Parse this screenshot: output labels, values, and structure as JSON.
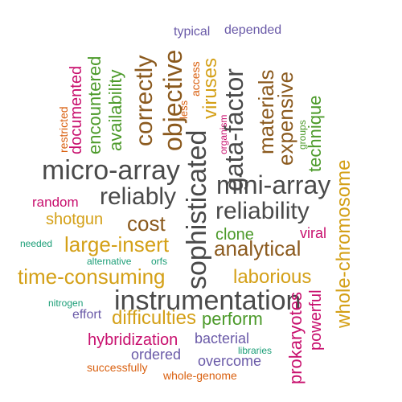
{
  "colors": {
    "gray": "#4a4a4a",
    "brown": "#8b5a1e",
    "gold": "#d4a017",
    "green": "#4c9a2a",
    "magenta": "#c8106e",
    "purple": "#6a5aa8",
    "orange": "#d95f0e",
    "teal": "#1b9e77"
  },
  "words": [
    {
      "text": "typical",
      "color": "#6a5aa8"
    },
    {
      "text": "depended",
      "color": "#6a5aa8"
    },
    {
      "text": "restricted",
      "color": "#d95f0e"
    },
    {
      "text": "documented",
      "color": "#c8106e"
    },
    {
      "text": "encountered",
      "color": "#4c9a2a"
    },
    {
      "text": "availability",
      "color": "#4c9a2a"
    },
    {
      "text": "correctly",
      "color": "#8b5a1e"
    },
    {
      "text": "less",
      "color": "#d95f0e"
    },
    {
      "text": "objective",
      "color": "#8b5a1e"
    },
    {
      "text": "access",
      "color": "#d95f0e"
    },
    {
      "text": "viruses",
      "color": "#d4a017"
    },
    {
      "text": "organism",
      "color": "#c8106e"
    },
    {
      "text": "gata-factor",
      "color": "#4a4a4a"
    },
    {
      "text": "materials",
      "color": "#8b5a1e"
    },
    {
      "text": "expensive",
      "color": "#8b5a1e"
    },
    {
      "text": "groups",
      "color": "#4c9a2a"
    },
    {
      "text": "technique",
      "color": "#4c9a2a"
    },
    {
      "text": "whole-chromosome",
      "color": "#d4a017"
    },
    {
      "text": "micro-array",
      "color": "#4a4a4a"
    },
    {
      "text": "sophisticated",
      "color": "#4a4a4a"
    },
    {
      "text": "mini-array",
      "color": "#4a4a4a"
    },
    {
      "text": "random",
      "color": "#c8106e"
    },
    {
      "text": "reliably",
      "color": "#4a4a4a"
    },
    {
      "text": "reliability",
      "color": "#4a4a4a"
    },
    {
      "text": "shotgun",
      "color": "#d4a017"
    },
    {
      "text": "cost",
      "color": "#8b5a1e"
    },
    {
      "text": "clone",
      "color": "#4c9a2a"
    },
    {
      "text": "viral",
      "color": "#c8106e"
    },
    {
      "text": "needed",
      "color": "#1b9e77"
    },
    {
      "text": "large-insert",
      "color": "#d4a017"
    },
    {
      "text": "analytical",
      "color": "#8b5a1e"
    },
    {
      "text": "alternative",
      "color": "#1b9e77"
    },
    {
      "text": "orfs",
      "color": "#1b9e77"
    },
    {
      "text": "time-consuming",
      "color": "#d4a017"
    },
    {
      "text": "laborious",
      "color": "#d4a017"
    },
    {
      "text": "nitrogen",
      "color": "#1b9e77"
    },
    {
      "text": "instrumentation",
      "color": "#4a4a4a"
    },
    {
      "text": "prokaryotes",
      "color": "#c8106e"
    },
    {
      "text": "powerful",
      "color": "#c8106e"
    },
    {
      "text": "effort",
      "color": "#6a5aa8"
    },
    {
      "text": "difficulties",
      "color": "#d4a017"
    },
    {
      "text": "perform",
      "color": "#4c9a2a"
    },
    {
      "text": "hybridization",
      "color": "#c8106e"
    },
    {
      "text": "bacterial",
      "color": "#6a5aa8"
    },
    {
      "text": "ordered",
      "color": "#6a5aa8"
    },
    {
      "text": "libraries",
      "color": "#1b9e77"
    },
    {
      "text": "overcome",
      "color": "#6a5aa8"
    },
    {
      "text": "successfully",
      "color": "#d95f0e"
    },
    {
      "text": "whole-genome",
      "color": "#d95f0e"
    }
  ]
}
